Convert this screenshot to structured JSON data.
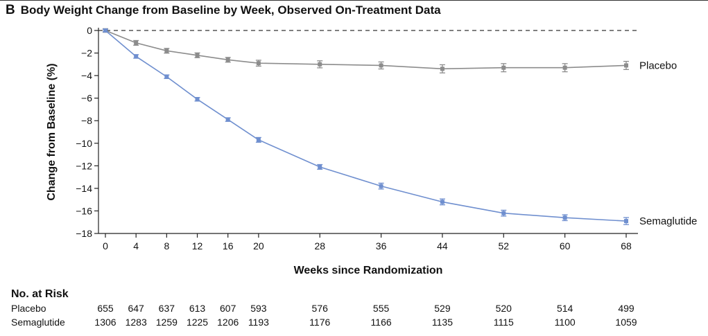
{
  "panel": {
    "letter": "B",
    "title": "Body Weight Change from Baseline by Week, Observed On-Treatment Data"
  },
  "chart_data": {
    "type": "line",
    "title": "Body Weight Change from Baseline by Week, Observed On-Treatment Data",
    "xlabel": "Weeks since Randomization",
    "ylabel": "Change from Baseline (%)",
    "xlim": [
      0,
      68
    ],
    "ylim": [
      -18,
      0
    ],
    "x_ticks": [
      0,
      4,
      8,
      12,
      16,
      20,
      28,
      36,
      44,
      52,
      60,
      68
    ],
    "y_ticks": [
      0,
      -2,
      -4,
      -6,
      -8,
      -10,
      -12,
      -14,
      -16,
      -18
    ],
    "y_tick_labels": [
      "0",
      "−2",
      "−4",
      "−6",
      "−8",
      "−10",
      "−12",
      "−14",
      "−16",
      "−18"
    ],
    "reference_line": {
      "y": 0,
      "style": "dashed"
    },
    "grid": false,
    "x": [
      0,
      4,
      8,
      12,
      16,
      20,
      28,
      36,
      44,
      52,
      60,
      68
    ],
    "series": [
      {
        "name": "Placebo",
        "color": "#8c8c8c",
        "values": [
          0,
          -1.1,
          -1.8,
          -2.2,
          -2.6,
          -2.9,
          -3.0,
          -3.1,
          -3.4,
          -3.3,
          -3.3,
          -3.1
        ],
        "error": [
          0.1,
          0.15,
          0.15,
          0.15,
          0.15,
          0.2,
          0.25,
          0.25,
          0.3,
          0.3,
          0.3,
          0.3
        ]
      },
      {
        "name": "Semaglutide",
        "color": "#6f8fcf",
        "values": [
          0,
          -2.3,
          -4.1,
          -6.1,
          -7.9,
          -9.7,
          -12.1,
          -13.8,
          -15.2,
          -16.2,
          -16.6,
          -16.9
        ],
        "error": [
          0.05,
          0.1,
          0.1,
          0.1,
          0.1,
          0.15,
          0.15,
          0.2,
          0.2,
          0.2,
          0.2,
          0.25
        ]
      }
    ],
    "at_risk": {
      "title": "No. at Risk",
      "rows": [
        {
          "label": "Placebo",
          "values": [
            "655",
            "647",
            "637",
            "613",
            "607",
            "593",
            "576",
            "555",
            "529",
            "520",
            "514",
            "499"
          ]
        },
        {
          "label": "Semaglutide",
          "values": [
            "1306",
            "1283",
            "1259",
            "1225",
            "1206",
            "1193",
            "1176",
            "1166",
            "1135",
            "1115",
            "1100",
            "1059"
          ]
        }
      ]
    }
  }
}
